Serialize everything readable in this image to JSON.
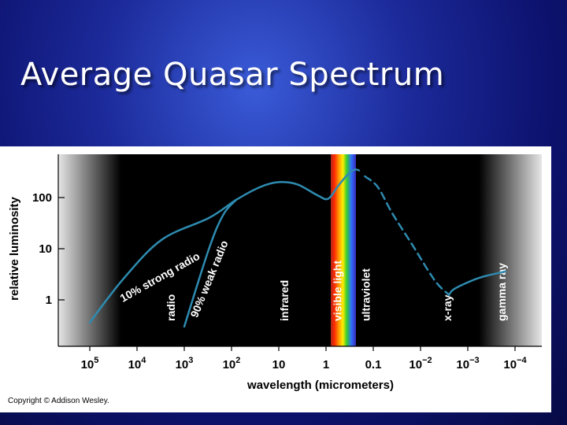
{
  "slide": {
    "title": "Average Quasar Spectrum",
    "copyright": "Copyright © Addison Wesley."
  },
  "chart_data": {
    "type": "line",
    "title": "",
    "xlabel": "wavelength (micrometers)",
    "ylabel": "relative luminosity",
    "x_scale": "log, decreasing to the right",
    "y_scale": "log",
    "x_ticks": [
      {
        "value": 100000,
        "base": "10",
        "exp": "5"
      },
      {
        "value": 10000,
        "base": "10",
        "exp": "4"
      },
      {
        "value": 1000,
        "base": "10",
        "exp": "3"
      },
      {
        "value": 100,
        "base": "10",
        "exp": "2"
      },
      {
        "value": 10,
        "base": "10",
        "exp": ""
      },
      {
        "value": 1,
        "base": "1",
        "exp": ""
      },
      {
        "value": 0.1,
        "base": "0.1",
        "exp": ""
      },
      {
        "value": 0.01,
        "base": "10",
        "exp": "−2"
      },
      {
        "value": 0.001,
        "base": "10",
        "exp": "−3"
      },
      {
        "value": 0.0001,
        "base": "10",
        "exp": "−4"
      }
    ],
    "y_ticks": [
      {
        "value": 100,
        "label": "100"
      },
      {
        "value": 10,
        "label": "10"
      },
      {
        "value": 1,
        "label": "1"
      }
    ],
    "xlim": [
      200000,
      5e-05
    ],
    "ylim": [
      0.1,
      700
    ],
    "bands": [
      {
        "label": "radio",
        "x": 2000
      },
      {
        "label": "infrared",
        "x": 8
      },
      {
        "label": "visible light",
        "x": 0.6
      },
      {
        "label": "ultraviolet",
        "x": 0.15
      },
      {
        "label": "x-ray",
        "x": 0.0028
      },
      {
        "label": "gamma ray",
        "x": 0.0002
      }
    ],
    "series": [
      {
        "name": "10% strong radio",
        "style": "solid",
        "points": [
          [
            100000,
            0.36
          ],
          [
            20000,
            2.5
          ],
          [
            3000,
            15
          ],
          [
            300,
            40
          ],
          [
            80,
            90
          ],
          [
            25,
            160
          ],
          [
            10,
            200
          ],
          [
            4,
            180
          ],
          [
            1.5,
            110
          ],
          [
            0.9,
            95
          ],
          [
            0.55,
            170
          ],
          [
            0.35,
            280
          ],
          [
            0.25,
            350
          ],
          [
            0.2,
            340
          ]
        ]
      },
      {
        "name": "90% weak radio",
        "style": "solid",
        "points": [
          [
            1000,
            0.3
          ],
          [
            300,
            10
          ],
          [
            150,
            46
          ],
          [
            80,
            90
          ]
        ]
      },
      {
        "name": "",
        "style": "dashed",
        "points": [
          [
            0.15,
            260
          ],
          [
            0.08,
            160
          ],
          [
            0.04,
            50
          ],
          [
            0.015,
            12
          ],
          [
            0.005,
            2.4
          ],
          [
            0.0025,
            1.25
          ]
        ]
      },
      {
        "name": "",
        "style": "solid",
        "points": [
          [
            0.0025,
            1.25
          ],
          [
            0.002,
            1.6
          ],
          [
            0.001,
            2.2
          ],
          [
            0.0005,
            2.8
          ],
          [
            0.00016,
            3.6
          ]
        ]
      }
    ],
    "curve_labels": [
      {
        "series": "10% strong radio",
        "x": 3000,
        "y": 2.4
      },
      {
        "series": "90% weak radio",
        "x": 250,
        "y": 2.4
      }
    ],
    "colors": {
      "curve": "#2e8bb0",
      "panel_dark": "#000000",
      "panel_edge": "#e6e6e6"
    }
  }
}
